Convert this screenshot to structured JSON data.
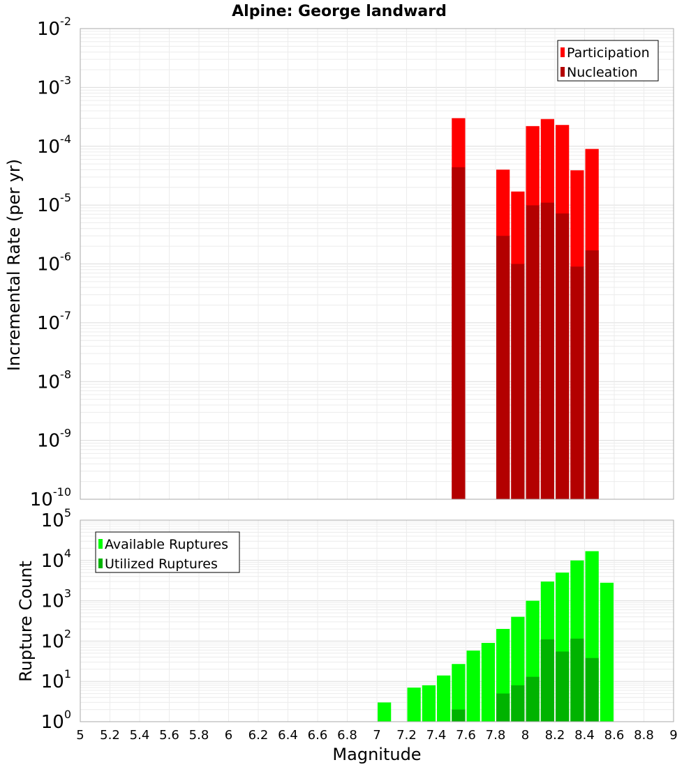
{
  "chart_data": [
    {
      "type": "bar",
      "title": "Alpine: George landward",
      "xlabel": "",
      "ylabel": "Incremental Rate (per yr)",
      "yscale": "log",
      "ylim_exp": [
        -10,
        -2
      ],
      "xlim": [
        5,
        9
      ],
      "bar_width": 0.1,
      "legend": {
        "placement": "top-right"
      },
      "series": [
        {
          "name": "Participation",
          "color": "#ff0000",
          "x": [
            7.55,
            7.85,
            7.95,
            8.05,
            8.15,
            8.25,
            8.35,
            8.45
          ],
          "values": [
            0.0003,
            4e-05,
            1.7e-05,
            0.00022,
            0.00029,
            0.00023,
            3.9e-05,
            9e-05
          ]
        },
        {
          "name": "Nucleation",
          "color": "#b30000",
          "x": [
            7.55,
            7.85,
            7.95,
            8.05,
            8.15,
            8.25,
            8.35,
            8.45
          ],
          "values": [
            4.4e-05,
            3e-06,
            1e-06,
            9.9e-06,
            1.1e-05,
            7.2e-06,
            9e-07,
            1.7e-06
          ]
        }
      ]
    },
    {
      "type": "bar",
      "title": "",
      "xlabel": "Magnitude",
      "ylabel": "Rupture Count",
      "yscale": "log",
      "ylim_exp": [
        0,
        5
      ],
      "xlim": [
        5,
        9
      ],
      "bar_width": 0.1,
      "legend": {
        "placement": "top-left"
      },
      "xticks": [
        "5",
        "5.2",
        "5.4",
        "5.6",
        "5.8",
        "6",
        "6.2",
        "6.4",
        "6.6",
        "6.8",
        "7",
        "7.2",
        "7.4",
        "7.6",
        "7.8",
        "8",
        "8.2",
        "8.4",
        "8.6",
        "8.8",
        "9"
      ],
      "series": [
        {
          "name": "Available Ruptures",
          "color": "#00ff00",
          "x": [
            6.75,
            6.95,
            7.05,
            7.15,
            7.25,
            7.35,
            7.45,
            7.55,
            7.65,
            7.75,
            7.85,
            7.95,
            8.05,
            8.15,
            8.25,
            8.35,
            8.45,
            8.55
          ],
          "values": [
            1,
            1,
            3,
            1,
            7,
            8,
            14,
            27,
            58,
            90,
            200,
            400,
            1000,
            3000,
            5000,
            10000,
            17000,
            2800
          ]
        },
        {
          "name": "Utilized Ruptures",
          "color": "#00b300",
          "x": [
            7.55,
            7.75,
            7.85,
            7.95,
            8.05,
            8.15,
            8.25,
            8.35,
            8.45
          ],
          "values": [
            2,
            1,
            5,
            8,
            13,
            110,
            55,
            115,
            38
          ]
        }
      ]
    }
  ]
}
